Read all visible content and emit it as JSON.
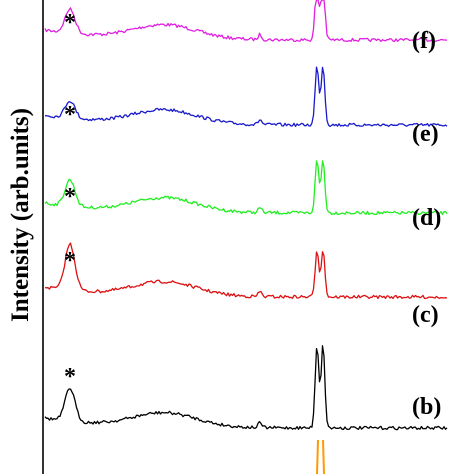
{
  "chart_data": {
    "type": "line",
    "ylabel": "Intensity (arb.units)",
    "grid": false,
    "legend": "none",
    "annotation_marker": "*",
    "series": [
      {
        "name": "(f)",
        "label": "(f)",
        "color": "#e020e0",
        "offset": 3.6,
        "hump": 0.22
      },
      {
        "name": "(e)",
        "label": "(e)",
        "color": "#1a1acc",
        "offset": 2.7,
        "hump": 0.16
      },
      {
        "name": "(d)",
        "label": "(d)",
        "color": "#22ee22",
        "offset": 1.8,
        "hump": 0.24
      },
      {
        "name": "(c)",
        "label": "(c)",
        "color": "#dd1111",
        "offset": 0.9,
        "hump": 0.42
      },
      {
        "name": "(b)",
        "label": "(b)",
        "color": "#000000",
        "offset": 0.0,
        "hump": 0.3
      }
    ],
    "reference_color": "#ff9900"
  }
}
